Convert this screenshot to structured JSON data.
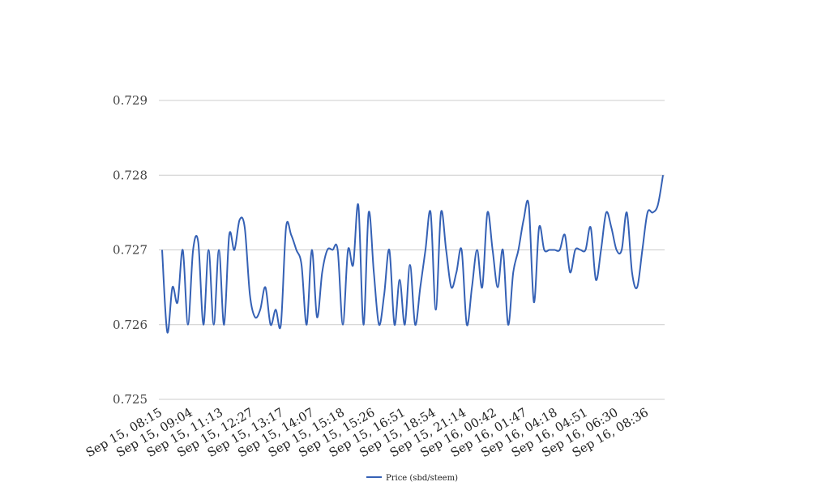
{
  "chart_data": {
    "type": "line",
    "title": "",
    "xlabel": "",
    "ylabel": "",
    "ylim": [
      0.725,
      0.729
    ],
    "y_ticks": [
      "0.725",
      "0.726",
      "0.727",
      "0.728",
      "0.729"
    ],
    "x_tick_labels": [
      "Sep 15, 08:15",
      "Sep 15, 09:04",
      "Sep 15, 11:13",
      "Sep 15, 12:27",
      "Sep 15, 13:17",
      "Sep 15, 14:07",
      "Sep 15, 15:18",
      "Sep 15, 15:26",
      "Sep 15, 16:51",
      "Sep 15, 18:54",
      "Sep 15, 21:14",
      "Sep 16, 00:42",
      "Sep 16, 01:47",
      "Sep 16, 04:18",
      "Sep 16, 04:51",
      "Sep 16, 06:30",
      "Sep 16, 08:36"
    ],
    "grid": true,
    "legend_position": "bottom-center",
    "series": [
      {
        "name": "Price (sbd/steem)",
        "color": "#3561b5",
        "values": [
          0.727,
          0.7259,
          0.7265,
          0.7263,
          0.727,
          0.726,
          0.727,
          0.7271,
          0.726,
          0.727,
          0.726,
          0.727,
          0.726,
          0.7272,
          0.727,
          0.7274,
          0.7273,
          0.7264,
          0.7261,
          0.7262,
          0.7265,
          0.726,
          0.7262,
          0.726,
          0.7273,
          0.7272,
          0.727,
          0.7268,
          0.726,
          0.727,
          0.7261,
          0.7267,
          0.727,
          0.727,
          0.727,
          0.726,
          0.727,
          0.7268,
          0.7276,
          0.726,
          0.7275,
          0.7267,
          0.726,
          0.7264,
          0.727,
          0.726,
          0.7266,
          0.726,
          0.7268,
          0.726,
          0.7265,
          0.727,
          0.7275,
          0.7262,
          0.7275,
          0.727,
          0.7265,
          0.7267,
          0.727,
          0.726,
          0.7265,
          0.727,
          0.7265,
          0.7275,
          0.727,
          0.7265,
          0.727,
          0.726,
          0.7267,
          0.727,
          0.7274,
          0.7276,
          0.7263,
          0.7273,
          0.727,
          0.727,
          0.727,
          0.727,
          0.7272,
          0.7267,
          0.727,
          0.727,
          0.727,
          0.7273,
          0.7266,
          0.727,
          0.7275,
          0.7273,
          0.727,
          0.727,
          0.7275,
          0.7267,
          0.7265,
          0.727,
          0.7275,
          0.7275,
          0.7276,
          0.728
        ]
      }
    ]
  }
}
